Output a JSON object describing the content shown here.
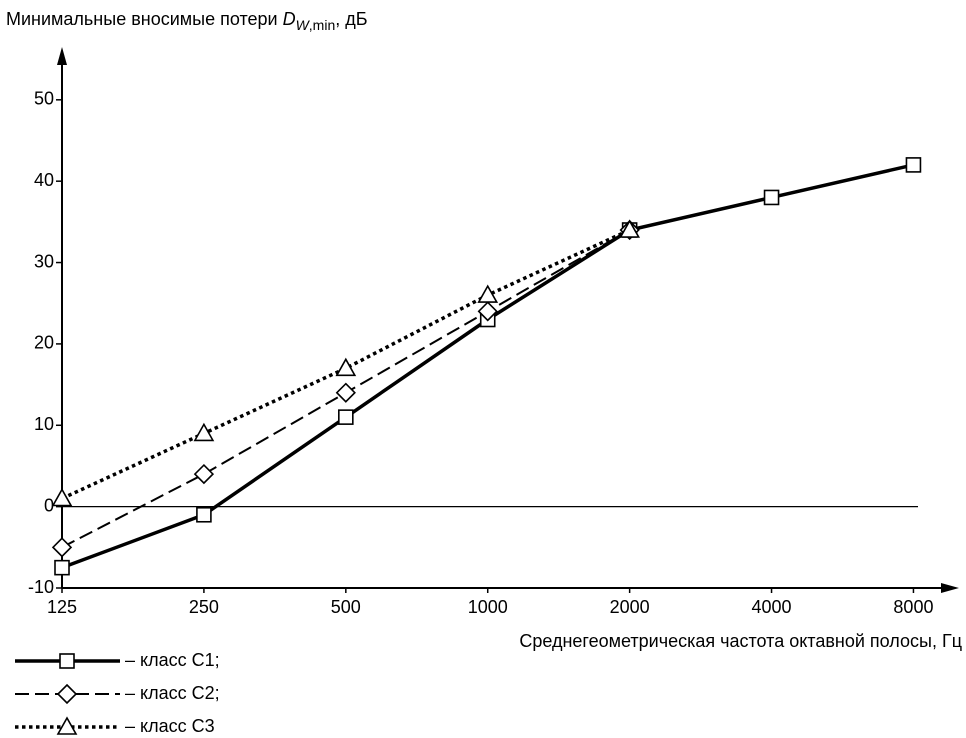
{
  "chart_data": {
    "type": "line",
    "ylabel": {
      "text": "Минимальные вносимые потери ",
      "symbol": "D",
      "sub_italic": "W",
      "sub": ",min",
      "unit": ", дБ"
    },
    "xlabel": "Среднегеометрическая частота октавной полосы, Гц",
    "x": [
      125,
      250,
      500,
      1000,
      2000,
      4000,
      8000
    ],
    "xscale": "log",
    "xlim": [
      125,
      9800
    ],
    "xticks": [
      125,
      250,
      500,
      1000,
      2000,
      4000,
      8000
    ],
    "ylim": [
      -10,
      56
    ],
    "yticks": [
      -10,
      0,
      10,
      20,
      30,
      40,
      50
    ],
    "zero_line": true,
    "legend": "bottom-left",
    "series": [
      {
        "name": "– класс С1;",
        "color": "#000000",
        "style": "solid",
        "marker": "square",
        "values": [
          -7.5,
          -1,
          11,
          23,
          34,
          38,
          42
        ]
      },
      {
        "name": "– класс С2;",
        "color": "#000000",
        "style": "dashed",
        "marker": "diamond",
        "values": [
          -5,
          4,
          14,
          24,
          34,
          null,
          null
        ]
      },
      {
        "name": "– класс С3",
        "color": "#000000",
        "style": "dotted",
        "marker": "triangle",
        "values": [
          1,
          9,
          17,
          26,
          34,
          null,
          null
        ]
      }
    ]
  }
}
